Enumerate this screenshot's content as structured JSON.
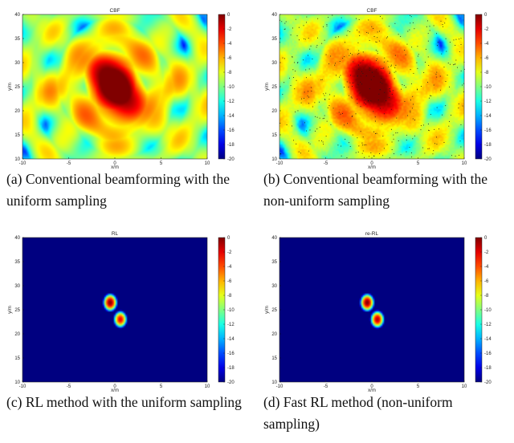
{
  "colors": {
    "low": "#00008f",
    "high": "#800000",
    "colormap": "jet"
  },
  "panels": [
    {
      "id": "a",
      "caption_tag": "(a)",
      "caption_text": "Conventional beamforming with the uniform sampling",
      "mode": "cbf",
      "sampling": "uniform"
    },
    {
      "id": "b",
      "caption_tag": "(b)",
      "caption_text": "Conventional beamforming with the non-uniform sampling",
      "mode": "cbf",
      "sampling": "non-uniform"
    },
    {
      "id": "c",
      "caption_tag": "(c)",
      "caption_text": "RL method with the uniform sampling",
      "mode": "rl",
      "sampling": "uniform"
    },
    {
      "id": "d",
      "caption_tag": "(d)",
      "caption_text": "Fast RL method (non-uniform sampling)",
      "mode": "rl",
      "sampling": "non-uniform"
    }
  ],
  "chart_data": [
    {
      "type": "heatmap",
      "title": "CBF",
      "xlabel": "x/m",
      "ylabel": "y/m",
      "xlim": [
        -10,
        10
      ],
      "ylim": [
        10,
        40
      ],
      "xticks": [
        -10,
        -5,
        0,
        5,
        10
      ],
      "yticks": [
        10,
        15,
        20,
        25,
        30,
        35,
        40
      ],
      "colorbar": {
        "range": [
          -20,
          0
        ],
        "ticks": [
          0,
          -2,
          -4,
          -6,
          -8,
          -10,
          -12,
          -14,
          -16,
          -18,
          -20
        ]
      },
      "sources": [
        {
          "x": -0.5,
          "y": 26.5,
          "level": 0
        },
        {
          "x": 0.7,
          "y": 23,
          "level": -1
        }
      ]
    },
    {
      "type": "heatmap",
      "title": "CBF",
      "xlabel": "x/m",
      "ylabel": "y/m",
      "xlim": [
        -10,
        10
      ],
      "ylim": [
        10,
        40
      ],
      "xticks": [
        -10,
        -5,
        0,
        5,
        10
      ],
      "yticks": [
        10,
        15,
        20,
        25,
        30,
        35,
        40
      ],
      "colorbar": {
        "range": [
          -20,
          0
        ],
        "ticks": [
          0,
          -2,
          -4,
          -6,
          -8,
          -10,
          -12,
          -14,
          -16,
          -18,
          -20
        ]
      },
      "sources": [
        {
          "x": -0.5,
          "y": 26.5,
          "level": 0
        },
        {
          "x": 0.7,
          "y": 23,
          "level": -1
        }
      ]
    },
    {
      "type": "heatmap",
      "title": "RL",
      "xlabel": "x/m",
      "ylabel": "y/m",
      "xlim": [
        -10,
        10
      ],
      "ylim": [
        10,
        40
      ],
      "xticks": [
        -10,
        -5,
        0,
        5,
        10
      ],
      "yticks": [
        10,
        15,
        20,
        25,
        30,
        35,
        40
      ],
      "colorbar": {
        "range": [
          -20,
          0
        ],
        "ticks": [
          0,
          -2,
          -4,
          -6,
          -8,
          -10,
          -12,
          -14,
          -16,
          -18,
          -20
        ]
      },
      "sources": [
        {
          "x": -0.5,
          "y": 26.5,
          "level": 0
        },
        {
          "x": 0.6,
          "y": 23,
          "level": -2
        }
      ]
    },
    {
      "type": "heatmap",
      "title": "re-RL",
      "xlabel": "x/m",
      "ylabel": "y/m",
      "xlim": [
        -10,
        10
      ],
      "ylim": [
        10,
        40
      ],
      "xticks": [
        -10,
        -5,
        0,
        5,
        10
      ],
      "yticks": [
        10,
        15,
        20,
        25,
        30,
        35,
        40
      ],
      "colorbar": {
        "range": [
          -20,
          0
        ],
        "ticks": [
          0,
          -2,
          -4,
          -6,
          -8,
          -10,
          -12,
          -14,
          -16,
          -18,
          -20
        ]
      },
      "sources": [
        {
          "x": -0.5,
          "y": 26.5,
          "level": 0
        },
        {
          "x": 0.6,
          "y": 23,
          "level": -1
        }
      ]
    }
  ]
}
